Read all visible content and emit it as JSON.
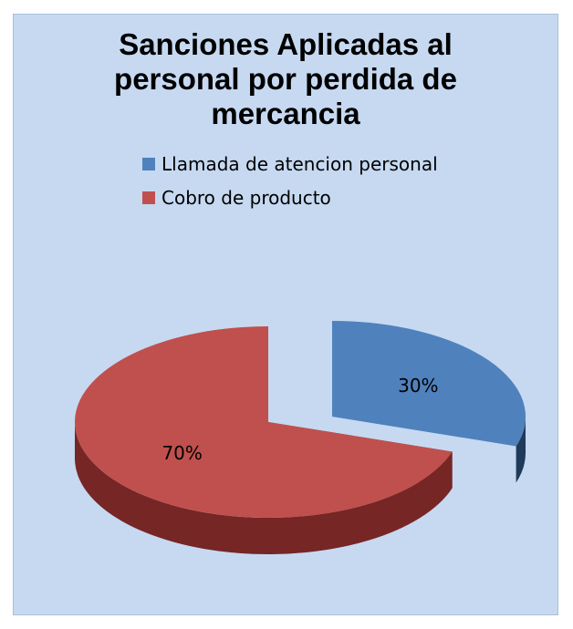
{
  "chart_data": {
    "type": "pie",
    "title_lines": [
      "Sanciones Aplicadas al",
      "personal por perdida de",
      "mercancia"
    ],
    "labels": [
      "Llamada de atencion personal",
      "Cobro de producto"
    ],
    "values": [
      30,
      70
    ],
    "data_labels": [
      "30%",
      "70%"
    ],
    "legend": "top",
    "colors": {
      "top": [
        "#4f81bd",
        "#c0504d"
      ],
      "side": [
        "#203a5a",
        "#762625"
      ]
    }
  }
}
